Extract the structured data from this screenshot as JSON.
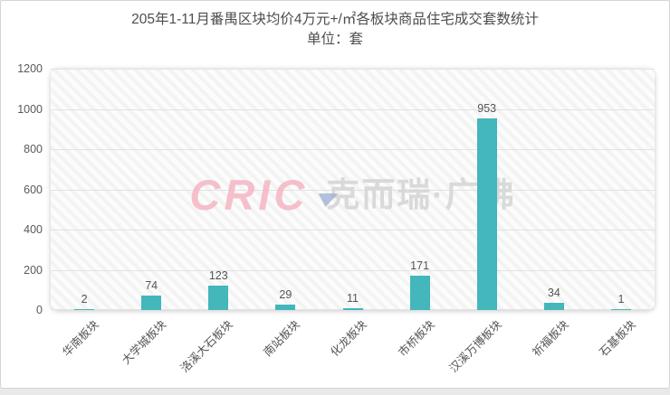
{
  "page": {
    "title_line1": "205年1-11月番禺区块均价4万元+/㎡各板块商品住宅成交套数统计",
    "title_line2": "单位：套"
  },
  "watermark": {
    "logo_text": "CRIC",
    "brand_text": "克而瑞·广佛",
    "logo_color": "#f5b6c3",
    "triangle_color": "#9cb0d2",
    "brand_color": "#d9d9d9"
  },
  "chart_data": {
    "type": "bar",
    "title": "205年1-11月番禺区块均价4万元+/㎡各板块商品住宅成交套数统计",
    "unit_label": "单位：套",
    "categories": [
      "华南板块",
      "大学城板块",
      "洛溪大石板块",
      "南站板块",
      "化龙板块",
      "市桥板块",
      "汉溪万博板块",
      "祈福板块",
      "石基板块"
    ],
    "values": [
      2,
      74,
      123,
      29,
      11,
      171,
      953,
      34,
      1
    ],
    "xlabel": "",
    "ylabel": "",
    "ylim": [
      0,
      1200
    ],
    "yticks": [
      0,
      200,
      400,
      600,
      800,
      1000,
      1200
    ],
    "bar_color": "#43b7bb",
    "grid": true,
    "legend": false,
    "data_labels": true
  }
}
